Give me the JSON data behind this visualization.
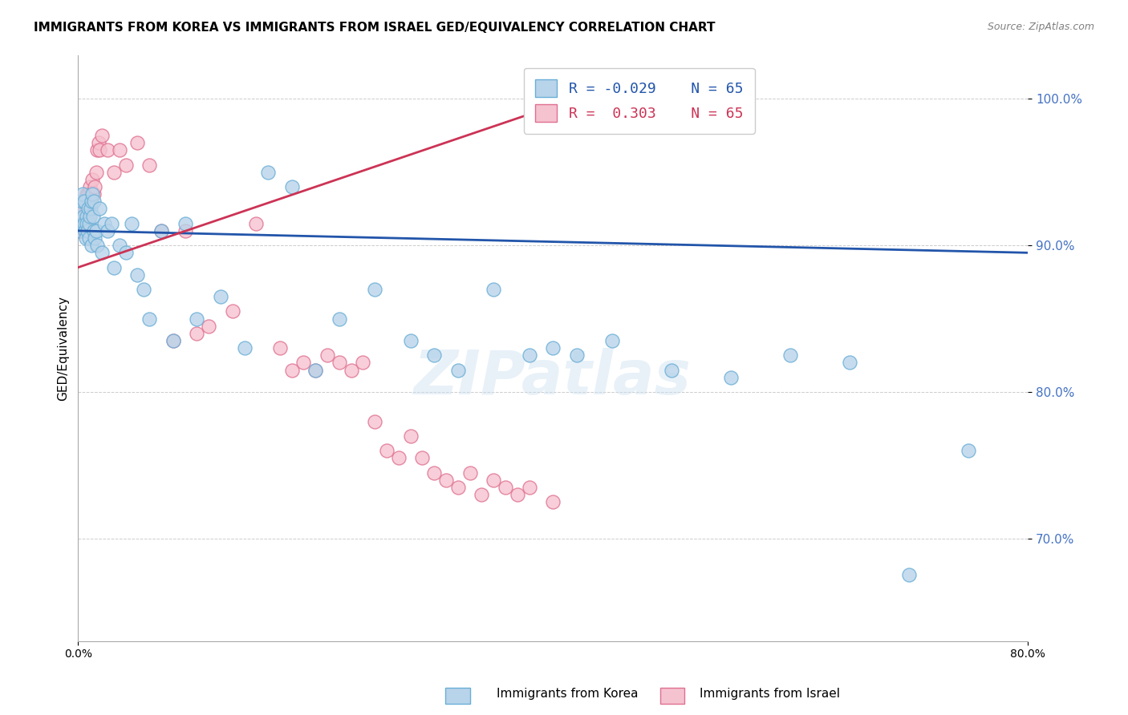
{
  "title": "IMMIGRANTS FROM KOREA VS IMMIGRANTS FROM ISRAEL GED/EQUIVALENCY CORRELATION CHART",
  "source": "Source: ZipAtlas.com",
  "ylabel": "GED/Equivalency",
  "y_ticks": [
    70.0,
    80.0,
    90.0,
    100.0
  ],
  "y_tick_labels": [
    "70.0%",
    "80.0%",
    "90.0%",
    "100.0%"
  ],
  "xlim": [
    0.0,
    80.0
  ],
  "ylim": [
    63.0,
    103.0
  ],
  "legend_r_korea": "-0.029",
  "legend_r_israel": " 0.303",
  "legend_n": "65",
  "korea_color": "#b8d4ea",
  "korea_edge": "#6aaed6",
  "israel_color": "#f5c2d0",
  "israel_edge": "#e07090",
  "trend_korea_color": "#2255aa",
  "trend_israel_color": "#cc3355",
  "watermark": "ZIPatlas",
  "korea_x": [
    0.15,
    0.2,
    0.25,
    0.3,
    0.35,
    0.4,
    0.45,
    0.5,
    0.55,
    0.6,
    0.65,
    0.7,
    0.75,
    0.8,
    0.85,
    0.9,
    0.95,
    1.0,
    1.05,
    1.1,
    1.15,
    1.2,
    1.25,
    1.3,
    1.35,
    1.4,
    1.5,
    1.6,
    1.8,
    2.0,
    2.2,
    2.5,
    2.8,
    3.0,
    3.5,
    4.0,
    4.5,
    5.0,
    5.5,
    6.0,
    7.0,
    8.0,
    9.0,
    10.0,
    12.0,
    14.0,
    16.0,
    18.0,
    20.0,
    22.0,
    25.0,
    28.0,
    30.0,
    32.0,
    35.0,
    38.0,
    40.0,
    42.0,
    45.0,
    50.0,
    55.0,
    60.0,
    65.0,
    70.0,
    75.0
  ],
  "korea_y": [
    91.0,
    92.5,
    91.5,
    93.0,
    91.5,
    93.5,
    92.0,
    91.5,
    93.0,
    91.0,
    90.5,
    92.0,
    91.5,
    91.0,
    92.5,
    91.5,
    90.5,
    92.0,
    92.5,
    93.0,
    90.0,
    93.5,
    92.0,
    91.0,
    93.0,
    90.5,
    91.0,
    90.0,
    92.5,
    89.5,
    91.5,
    91.0,
    91.5,
    88.5,
    90.0,
    89.5,
    91.5,
    88.0,
    87.0,
    85.0,
    91.0,
    83.5,
    91.5,
    85.0,
    86.5,
    83.0,
    95.0,
    94.0,
    81.5,
    85.0,
    87.0,
    83.5,
    82.5,
    81.5,
    87.0,
    82.5,
    83.0,
    82.5,
    83.5,
    81.5,
    81.0,
    82.5,
    82.0,
    67.5,
    76.0
  ],
  "israel_x": [
    0.1,
    0.15,
    0.2,
    0.25,
    0.3,
    0.35,
    0.4,
    0.45,
    0.5,
    0.55,
    0.6,
    0.65,
    0.7,
    0.75,
    0.8,
    0.85,
    0.9,
    0.95,
    1.0,
    1.05,
    1.1,
    1.2,
    1.3,
    1.4,
    1.5,
    1.6,
    1.7,
    1.8,
    2.0,
    2.5,
    3.0,
    3.5,
    4.0,
    5.0,
    6.0,
    7.0,
    8.0,
    9.0,
    10.0,
    11.0,
    13.0,
    15.0,
    17.0,
    18.0,
    19.0,
    20.0,
    21.0,
    22.0,
    23.0,
    24.0,
    25.0,
    26.0,
    27.0,
    28.0,
    29.0,
    30.0,
    31.0,
    32.0,
    33.0,
    34.0,
    35.0,
    36.0,
    37.0,
    38.0,
    40.0
  ],
  "israel_y": [
    91.5,
    92.0,
    91.0,
    91.5,
    92.5,
    93.0,
    92.0,
    92.5,
    91.0,
    92.5,
    91.5,
    93.0,
    93.5,
    92.5,
    93.5,
    92.0,
    93.0,
    93.5,
    94.0,
    93.0,
    93.5,
    94.5,
    93.5,
    94.0,
    95.0,
    96.5,
    97.0,
    96.5,
    97.5,
    96.5,
    95.0,
    96.5,
    95.5,
    97.0,
    95.5,
    91.0,
    83.5,
    91.0,
    84.0,
    84.5,
    85.5,
    91.5,
    83.0,
    81.5,
    82.0,
    81.5,
    82.5,
    82.0,
    81.5,
    82.0,
    78.0,
    76.0,
    75.5,
    77.0,
    75.5,
    74.5,
    74.0,
    73.5,
    74.5,
    73.0,
    74.0,
    73.5,
    73.0,
    73.5,
    72.5
  ],
  "trend_korea_x0": 0.0,
  "trend_korea_x1": 80.0,
  "trend_korea_y0": 91.0,
  "trend_korea_y1": 89.5,
  "trend_israel_x0": 0.0,
  "trend_israel_x1": 40.0,
  "trend_israel_y0": 88.5,
  "trend_israel_y1": 99.5
}
